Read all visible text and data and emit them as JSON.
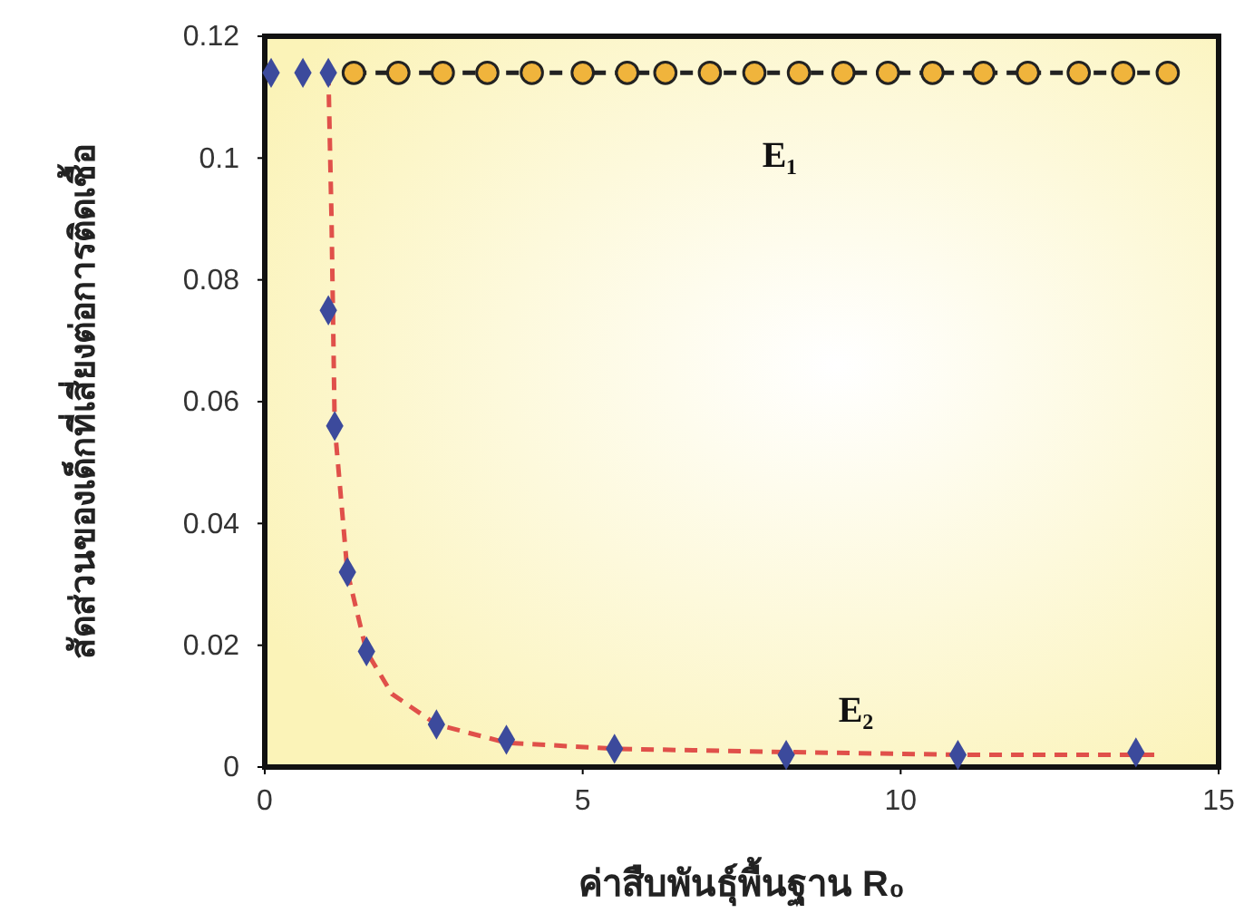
{
  "chart_data": {
    "type": "scatter",
    "xlabel": "ค่าสืบพันธุ์พื้นฐาน R₀",
    "ylabel": "สัดส่วนของเด็กที่เสี่ยงต่อการติดเชื้อ",
    "xlim": [
      0,
      15
    ],
    "xticks": [
      0,
      5,
      10,
      15
    ],
    "ylim": [
      0,
      0.12
    ],
    "yticks": [
      0,
      0.02,
      0.04,
      0.06,
      0.08,
      0.1,
      0.12
    ],
    "grid": false,
    "series": [
      {
        "type": "line",
        "color": "#222222",
        "line_style": "dashed",
        "marker": "none",
        "x": [
          1.4,
          2.1,
          2.8,
          3.5,
          4.2,
          5.0,
          5.7,
          6.3,
          7.0,
          7.7,
          8.4,
          9.1,
          9.8,
          10.5,
          11.3,
          12.0,
          12.8,
          13.5,
          14.2
        ],
        "values": [
          0.114,
          0.114,
          0.114,
          0.114,
          0.114,
          0.114,
          0.114,
          0.114,
          0.114,
          0.114,
          0.114,
          0.114,
          0.114,
          0.114,
          0.114,
          0.114,
          0.114,
          0.114,
          0.114
        ]
      },
      {
        "color": "#f0b43c",
        "marker": "circle",
        "x": [
          1.4,
          2.1,
          2.8,
          3.5,
          4.2,
          5.0,
          5.7,
          6.3,
          7.0,
          7.7,
          8.4,
          9.1,
          9.8,
          10.5,
          11.3,
          12.0,
          12.8,
          13.5,
          14.2
        ],
        "values": [
          0.114,
          0.114,
          0.114,
          0.114,
          0.114,
          0.114,
          0.114,
          0.114,
          0.114,
          0.114,
          0.114,
          0.114,
          0.114,
          0.114,
          0.114,
          0.114,
          0.114,
          0.114,
          0.114
        ]
      },
      {
        "type": "line",
        "color": "#e0504a",
        "line_style": "dashed",
        "marker": "none",
        "x": [
          1.0,
          1.05,
          1.1,
          1.3,
          1.6,
          2.0,
          2.7,
          3.8,
          5.5,
          8.0,
          11.0,
          14.0
        ],
        "values": [
          0.114,
          0.09,
          0.056,
          0.032,
          0.019,
          0.012,
          0.007,
          0.004,
          0.003,
          0.0025,
          0.002,
          0.002
        ]
      },
      {
        "color": "#3c4a9c",
        "marker": "diamond",
        "x": [
          0.1,
          0.6,
          1.0,
          1.0,
          1.1,
          1.3,
          1.6,
          2.7,
          3.8,
          5.5,
          8.2,
          10.9,
          13.7
        ],
        "values": [
          0.114,
          0.114,
          0.114,
          0.075,
          0.056,
          0.032,
          0.019,
          0.007,
          0.0045,
          0.003,
          0.002,
          0.002,
          0.0024
        ]
      }
    ],
    "annotations": [
      "E₁",
      "E₂"
    ]
  }
}
